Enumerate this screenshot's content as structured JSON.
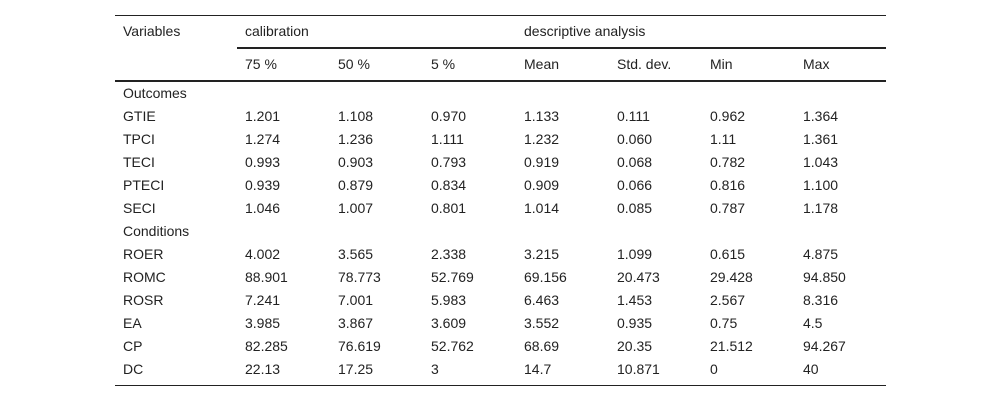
{
  "header": {
    "variables": "Variables",
    "groups": [
      "calibration",
      "descriptive analysis"
    ],
    "columns": [
      "75 %",
      "50 %",
      "5 %",
      "Mean",
      "Std. dev.",
      "Min",
      "Max"
    ]
  },
  "sections": [
    {
      "label": "Outcomes",
      "rows": [
        [
          "GTIE",
          "1.201",
          "1.108",
          "0.970",
          "1.133",
          "0.111",
          "0.962",
          "1.364"
        ],
        [
          "TPCI",
          "1.274",
          "1.236",
          "1.111",
          "1.232",
          "0.060",
          "1.11",
          "1.361"
        ],
        [
          "TECI",
          "0.993",
          "0.903",
          "0.793",
          "0.919",
          "0.068",
          "0.782",
          "1.043"
        ],
        [
          "PTECI",
          "0.939",
          "0.879",
          "0.834",
          "0.909",
          "0.066",
          "0.816",
          "1.100"
        ],
        [
          "SECI",
          "1.046",
          "1.007",
          "0.801",
          "1.014",
          "0.085",
          "0.787",
          "1.178"
        ]
      ]
    },
    {
      "label": "Conditions",
      "rows": [
        [
          "ROER",
          "4.002",
          "3.565",
          "2.338",
          "3.215",
          "1.099",
          "0.615",
          "4.875"
        ],
        [
          "ROMC",
          "88.901",
          "78.773",
          "52.769",
          "69.156",
          "20.473",
          "29.428",
          "94.850"
        ],
        [
          "ROSR",
          "7.241",
          "7.001",
          "5.983",
          "6.463",
          "1.453",
          "2.567",
          "8.316"
        ],
        [
          "EA",
          "3.985",
          "3.867",
          "3.609",
          "3.552",
          "0.935",
          "0.75",
          "4.5"
        ],
        [
          "CP",
          "82.285",
          "76.619",
          "52.762",
          "68.69",
          "20.35",
          "21.512",
          "94.267"
        ],
        [
          "DC",
          "22.13",
          "17.25",
          "3",
          "14.7",
          "10.871",
          "0",
          "40"
        ]
      ]
    }
  ]
}
